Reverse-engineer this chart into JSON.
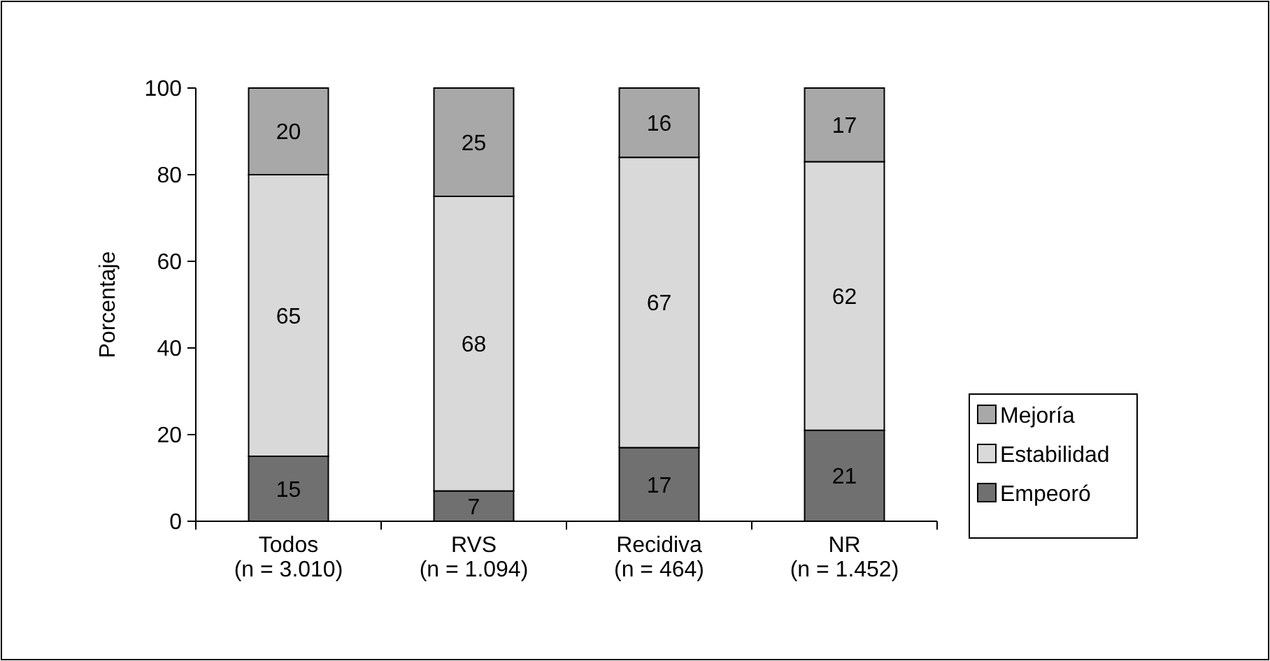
{
  "chart_data": {
    "type": "bar",
    "stacked": true,
    "ylabel": "Porcentaje",
    "categories": [
      "Todos\n(n = 3.010)",
      "RVS\n(n = 1.094)",
      "Recidiva\n(n = 464)",
      "NR\n(n = 1.452)"
    ],
    "series": [
      {
        "name": "Empeoró",
        "color": "#707070",
        "values": [
          15,
          7,
          17,
          21
        ]
      },
      {
        "name": "Estabilidad",
        "color": "#d9d9d9",
        "values": [
          65,
          68,
          67,
          62
        ]
      },
      {
        "name": "Mejoría",
        "color": "#a8a8a8",
        "values": [
          20,
          25,
          16,
          17
        ]
      }
    ],
    "ylim": [
      0,
      100
    ],
    "yticks": [
      0,
      20,
      40,
      60,
      80,
      100
    ],
    "data_labels": true,
    "legend": "right",
    "grid": false
  }
}
